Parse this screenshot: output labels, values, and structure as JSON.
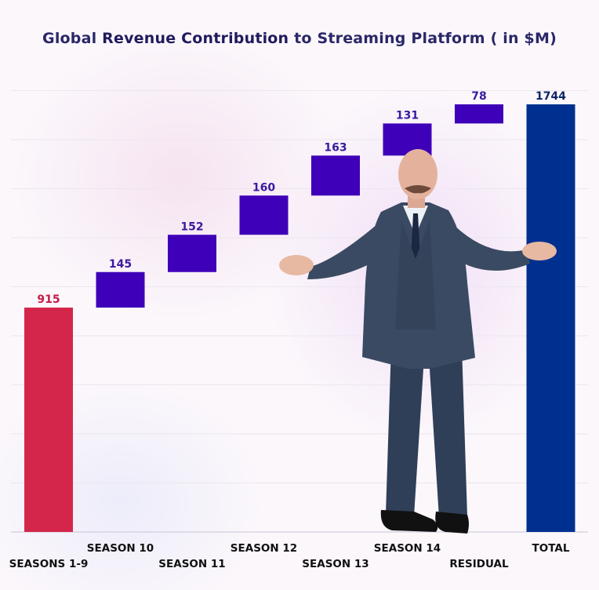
{
  "title": {
    "pre": "Global ",
    "bold": "Revenue Contribution",
    "post": " to Streaming Platform ( in $M)"
  },
  "chart_data": {
    "type": "waterfall",
    "title": "Global Revenue Contribution to Streaming Platform ( in $M)",
    "categories": [
      "SEASONS 1-9",
      "SEASON 10",
      "SEASON 11",
      "SEASON 12",
      "SEASON 13",
      "SEASON 14",
      "RESIDUAL",
      "TOTAL"
    ],
    "values": [
      915,
      145,
      152,
      160,
      163,
      131,
      78,
      1744
    ],
    "kinds": [
      "base",
      "increment",
      "increment",
      "increment",
      "increment",
      "increment",
      "increment",
      "total"
    ],
    "colors": {
      "base": "#d4264a",
      "increment": "#3e00b8",
      "total": "#00308f",
      "base_label": "#c21d45",
      "increment_label": "#3a1a9e",
      "total_label": "#0d2466"
    },
    "ylim": [
      0,
      1800
    ],
    "grid": true,
    "legend": "none"
  }
}
